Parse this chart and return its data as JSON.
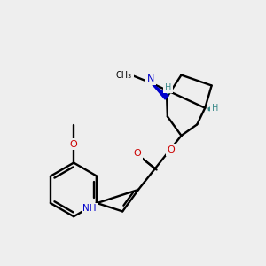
{
  "bg_color": "#eeeeee",
  "line_color": "#000000",
  "N_color": "#0000cc",
  "O_color": "#cc0000",
  "stereo_color": "#3a8a8a",
  "lw": 1.7,
  "figsize": [
    3.0,
    3.0
  ],
  "dpi": 100,
  "xlim": [
    0,
    10
  ],
  "ylim": [
    0,
    10
  ]
}
